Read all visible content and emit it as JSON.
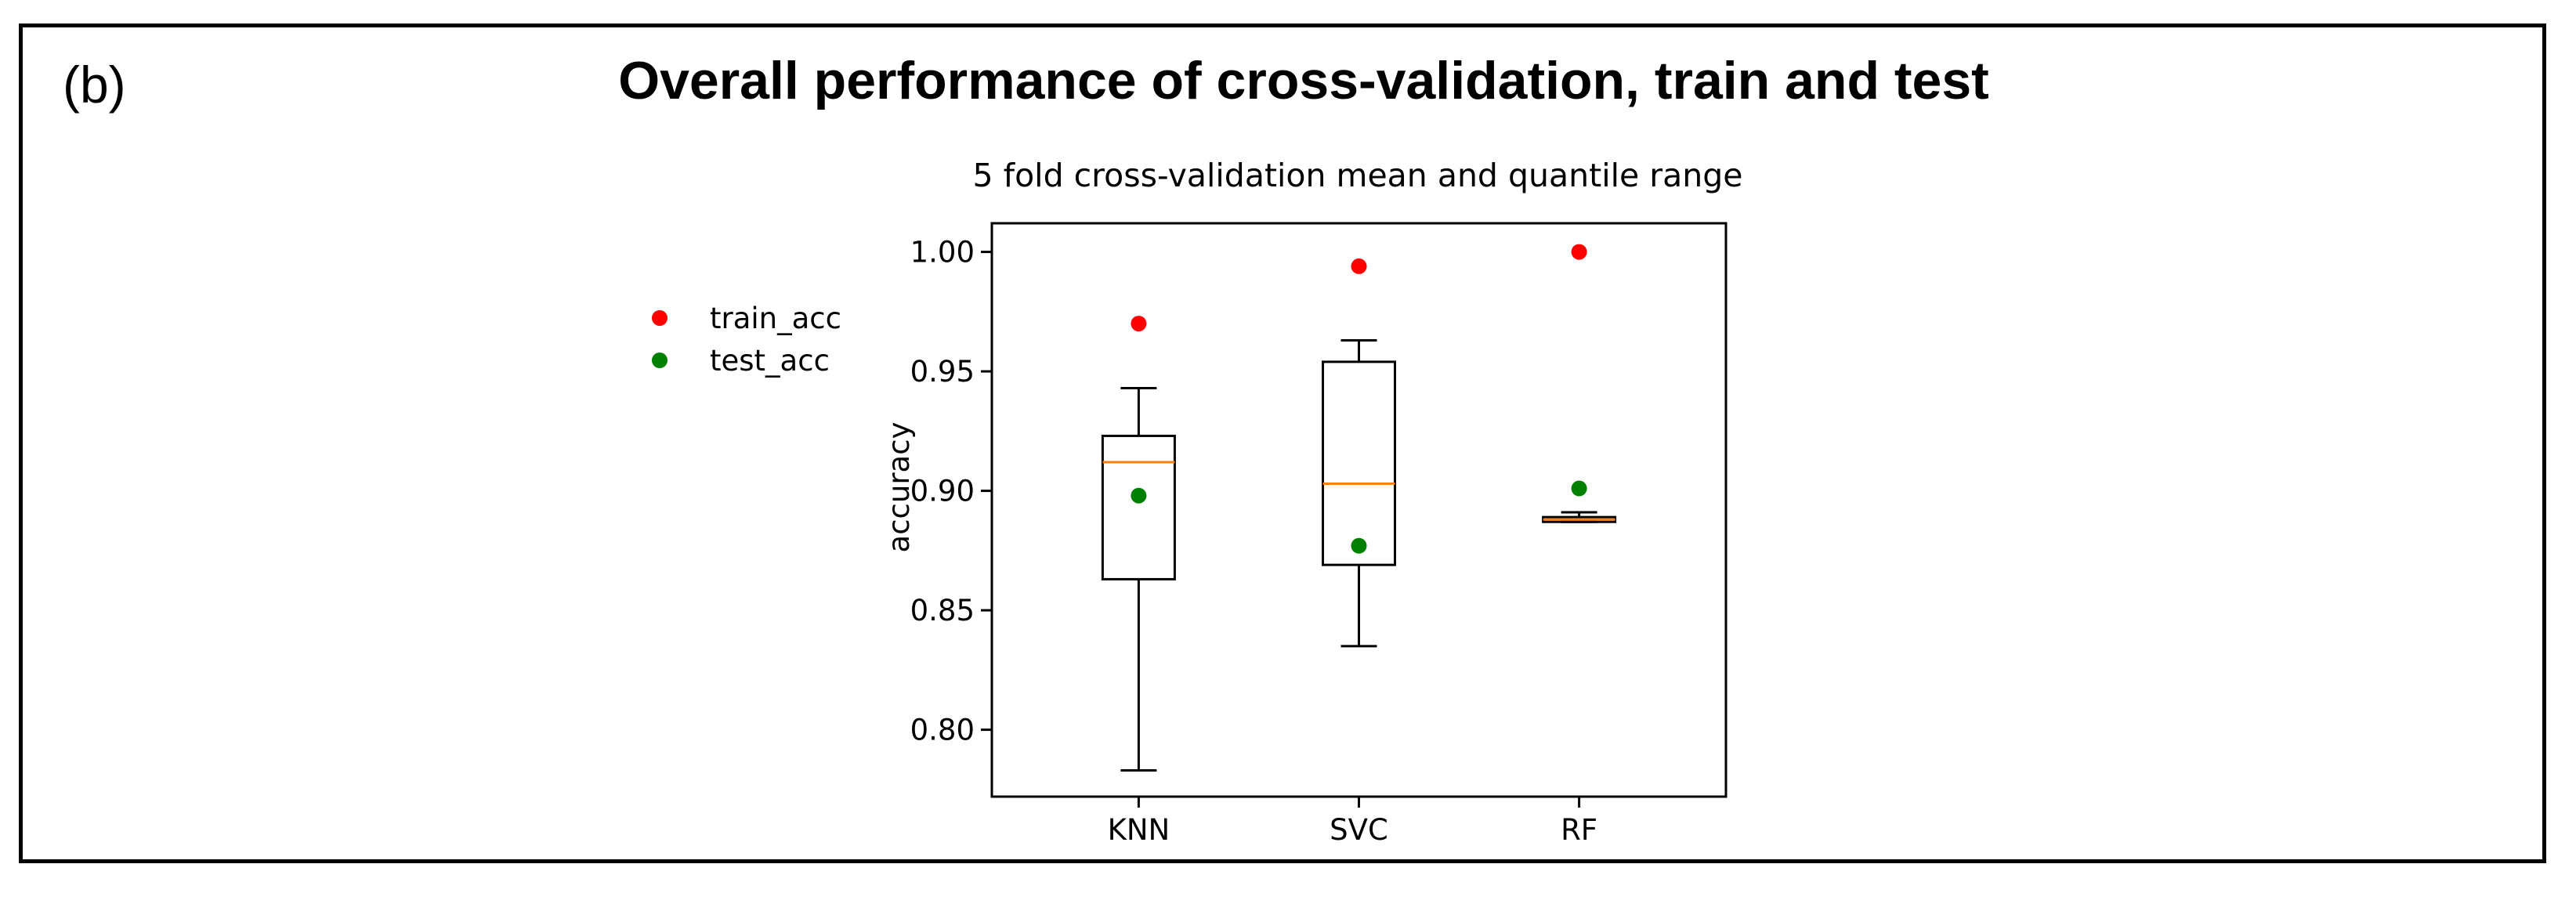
{
  "figure": {
    "panel_label": "(b)",
    "title": "Overall performance of cross-validation, train and test"
  },
  "chart_data": {
    "type": "boxplot",
    "title": "5 fold cross-validation mean and quantile range",
    "xlabel": "",
    "ylabel": "accuracy",
    "categories": [
      "KNN",
      "SVC",
      "RF"
    ],
    "ylim": [
      0.772,
      1.012
    ],
    "yticks": [
      0.8,
      0.85,
      0.9,
      0.95,
      1.0
    ],
    "ytick_labels": [
      "0.80",
      "0.85",
      "0.90",
      "0.95",
      "1.00"
    ],
    "boxes": [
      {
        "name": "KNN",
        "whisker_low": 0.783,
        "q1": 0.863,
        "median": 0.912,
        "q3": 0.923,
        "whisker_high": 0.943
      },
      {
        "name": "SVC",
        "whisker_low": 0.835,
        "q1": 0.869,
        "median": 0.903,
        "q3": 0.954,
        "whisker_high": 0.963
      },
      {
        "name": "RF",
        "whisker_low": 0.887,
        "q1": 0.887,
        "median": 0.888,
        "q3": 0.889,
        "whisker_high": 0.891
      }
    ],
    "series": [
      {
        "name": "train_acc",
        "color": "#ff0000",
        "values": [
          0.97,
          0.994,
          1.0
        ]
      },
      {
        "name": "test_acc",
        "color": "#008000",
        "values": [
          0.898,
          0.877,
          0.901
        ]
      }
    ],
    "legend": {
      "placement": "left, outside axes",
      "entries": [
        "train_acc",
        "test_acc"
      ]
    },
    "colors": {
      "box": "#000000",
      "median": "#ff7f0e"
    }
  }
}
